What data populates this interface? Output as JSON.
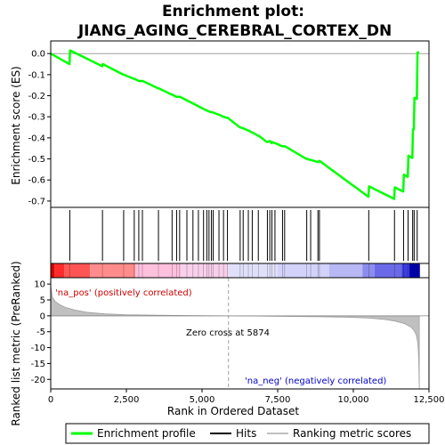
{
  "chart_data": {
    "type": "line",
    "title_line1": "Enrichment plot:",
    "title_line2": "JIANG_AGING_CEREBRAL_CORTEX_DN",
    "xlabel": "Rank in Ordered Dataset",
    "ylabel_top": "Enrichment score (ES)",
    "ylabel_bottom": "Ranked list metric (PreRanked)",
    "xlim": [
      0,
      12500
    ],
    "x_ticks": [
      0,
      2500,
      5000,
      7500,
      10000,
      12500
    ],
    "x_tick_labels": [
      "0",
      "2,500",
      "5,000",
      "7,500",
      "10,000",
      "12,500"
    ],
    "es_ylim": [
      -0.73,
      0.06
    ],
    "es_ticks": [
      0.0,
      -0.1,
      -0.2,
      -0.3,
      -0.4,
      -0.5,
      -0.6,
      -0.7
    ],
    "es_tick_labels": [
      "0.0",
      "-0.1",
      "-0.2",
      "-0.3",
      "-0.4",
      "-0.5",
      "-0.6",
      "-0.7"
    ],
    "metric_ylim": [
      -23,
      12
    ],
    "metric_ticks": [
      10,
      5,
      0,
      -5,
      -10,
      -15,
      -20
    ],
    "metric_tick_labels": [
      "10",
      "5",
      "0",
      "-5",
      "-10",
      "-15",
      "-20"
    ],
    "enrichment_profile": {
      "name": "Enrichment profile",
      "color": "#00ff00",
      "x": [
        0,
        620,
        640,
        1700,
        1720,
        2400,
        2420,
        2750,
        2780,
        2900,
        2920,
        3020,
        3040,
        3550,
        3570,
        4000,
        4020,
        4150,
        4170,
        4250,
        4270,
        5150,
        5170,
        5220,
        5240,
        5300,
        5320,
        5360,
        5380,
        5550,
        5570,
        5700,
        5720,
        5830,
        5850,
        6250,
        6270,
        6350,
        6370,
        6520,
        6540,
        6650,
        6670,
        6850,
        6870,
        7150,
        7170,
        7230,
        7250,
        7300,
        7320,
        7400,
        7420,
        7650,
        7670,
        7720,
        7740,
        8450,
        8470,
        8580,
        8600,
        8820,
        8840,
        8870,
        8890,
        10500,
        10520,
        11350,
        11370,
        11650,
        11670,
        11800,
        11820,
        11950,
        11970,
        12000,
        12020,
        12100,
        12120,
        12180
      ],
      "y": [
        0.0,
        -0.05,
        0.015,
        -0.06,
        -0.05,
        -0.1,
        -0.1,
        -0.12,
        -0.12,
        -0.13,
        -0.13,
        -0.13,
        -0.13,
        -0.165,
        -0.165,
        -0.195,
        -0.195,
        -0.205,
        -0.205,
        -0.205,
        -0.205,
        -0.27,
        -0.27,
        -0.275,
        -0.275,
        -0.278,
        -0.278,
        -0.28,
        -0.28,
        -0.29,
        -0.29,
        -0.3,
        -0.3,
        -0.305,
        -0.305,
        -0.35,
        -0.35,
        -0.355,
        -0.355,
        -0.365,
        -0.365,
        -0.375,
        -0.375,
        -0.39,
        -0.39,
        -0.42,
        -0.42,
        -0.415,
        -0.415,
        -0.425,
        -0.42,
        -0.425,
        -0.425,
        -0.44,
        -0.44,
        -0.44,
        -0.44,
        -0.5,
        -0.5,
        -0.505,
        -0.505,
        -0.515,
        -0.515,
        -0.51,
        -0.51,
        -0.68,
        -0.63,
        -0.69,
        -0.635,
        -0.655,
        -0.575,
        -0.585,
        -0.485,
        -0.495,
        -0.36,
        -0.36,
        -0.21,
        -0.215,
        0.005,
        0.005
      ]
    },
    "hits": {
      "name": "Hits",
      "color": "#000000",
      "x": [
        630,
        1710,
        2410,
        2760,
        2910,
        3030,
        3560,
        4010,
        4160,
        4260,
        4500,
        4700,
        4880,
        5050,
        5160,
        5230,
        5310,
        5370,
        5560,
        5710,
        5840,
        6260,
        6360,
        6530,
        6660,
        6860,
        7160,
        7240,
        7310,
        7410,
        7660,
        7730,
        8460,
        8590,
        8830,
        8880,
        10510,
        11360,
        11660,
        11810,
        11960,
        12010,
        12110
      ]
    },
    "ranking_metric": {
      "name": "Ranking metric scores",
      "color": "#c0c0c0",
      "x": [
        0,
        50,
        150,
        300,
        500,
        800,
        1200,
        1800,
        2500,
        3500,
        4500,
        5874,
        7000,
        8000,
        9000,
        9800,
        10500,
        11000,
        11400,
        11700,
        11900,
        12000,
        12080,
        12130,
        12160,
        12180
      ],
      "y": [
        9.5,
        6.0,
        4.5,
        3.5,
        2.6,
        1.8,
        1.1,
        0.6,
        0.35,
        0.2,
        0.1,
        0.0,
        -0.1,
        -0.2,
        -0.3,
        -0.45,
        -0.7,
        -1.1,
        -1.7,
        -2.5,
        -3.5,
        -4.5,
        -6.0,
        -8.5,
        -13.0,
        -23.0
      ]
    },
    "zero_cross_label": "Zero cross at 5874",
    "zero_cross_x": 5874,
    "pos_label": "'na_pos' (positively correlated)",
    "neg_label": "'na_neg' (negatively correlated)",
    "pos_color": "#cc0000",
    "neg_color": "#0000cc",
    "heat_colors": [
      {
        "from": 0,
        "to": 120,
        "color": "#d40000"
      },
      {
        "from": 120,
        "to": 450,
        "color": "#ff2a2a"
      },
      {
        "from": 450,
        "to": 1300,
        "color": "#ff5555"
      },
      {
        "from": 1300,
        "to": 2800,
        "color": "#ff8c8c"
      },
      {
        "from": 2800,
        "to": 4300,
        "color": "#ffc0de"
      },
      {
        "from": 4300,
        "to": 5874,
        "color": "#f8d0ec"
      },
      {
        "from": 5874,
        "to": 7500,
        "color": "#e0e0fa"
      },
      {
        "from": 7500,
        "to": 9200,
        "color": "#d2d2fa"
      },
      {
        "from": 9200,
        "to": 10300,
        "color": "#b8b8f4"
      },
      {
        "from": 10300,
        "to": 10700,
        "color": "#8c8cf0"
      },
      {
        "from": 10700,
        "to": 11600,
        "color": "#6a6ae8"
      },
      {
        "from": 11600,
        "to": 11850,
        "color": "#3c3cdc"
      },
      {
        "from": 11850,
        "to": 12200,
        "color": "#0000b4"
      }
    ],
    "legend": [
      {
        "label": "Enrichment profile",
        "color": "#00ff00"
      },
      {
        "label": "Hits",
        "color": "#000000"
      },
      {
        "label": "Ranking metric scores",
        "color": "#c0c0c0"
      }
    ],
    "grid": false
  }
}
